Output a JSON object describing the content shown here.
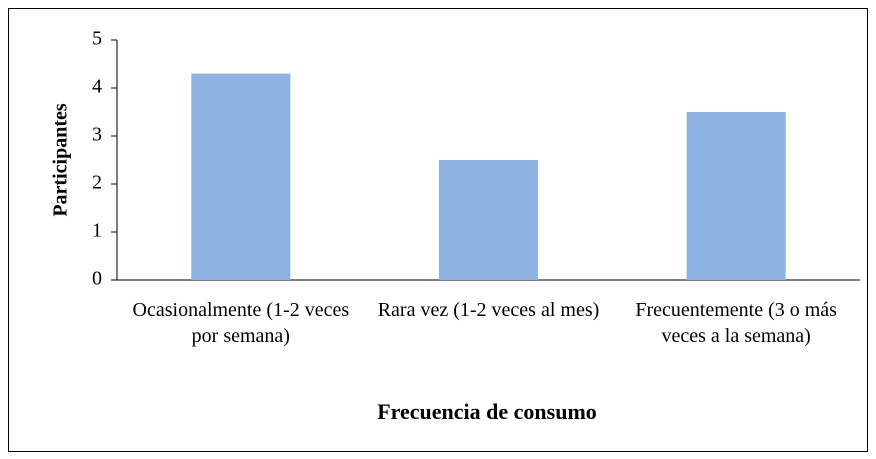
{
  "chart_data": {
    "type": "bar",
    "categories": [
      "Ocasionalmente (1-2 veces por semana)",
      "Rara vez (1-2 veces al mes)",
      "Frecuentemente (3 o más veces a la semana)"
    ],
    "values": [
      4.3,
      2.5,
      3.5
    ],
    "color": "#8db3e2",
    "xlabel": "Frecuencia de consumo",
    "ylabel": "Participantes",
    "ylim": [
      0,
      5
    ],
    "yticks": [
      0,
      1,
      2,
      3,
      4,
      5
    ],
    "grid": false
  }
}
